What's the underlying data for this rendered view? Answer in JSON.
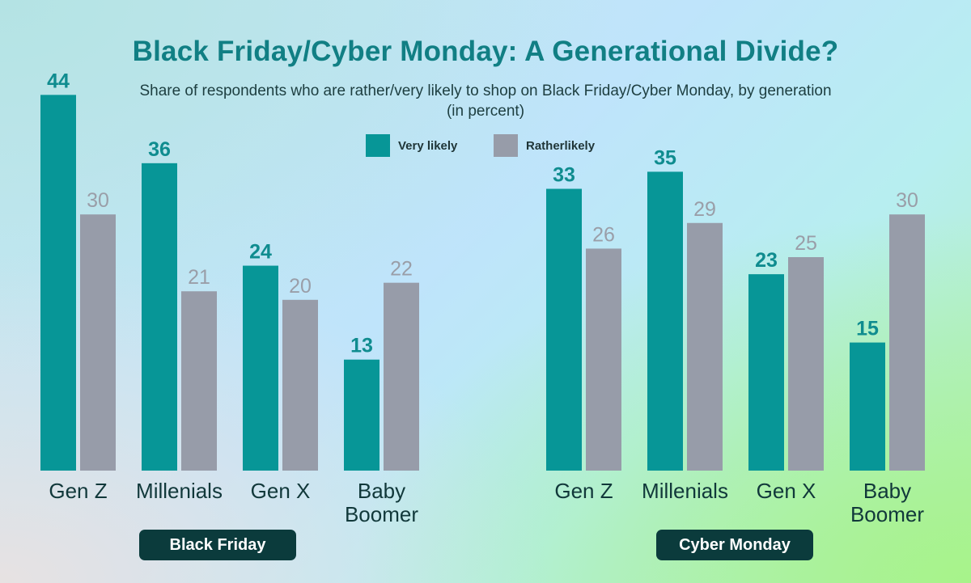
{
  "title": "Black Friday/Cyber Monday: A Generational Divide?",
  "subtitle": "Share of respondents who are rather/very likely to shop on Black Friday/Cyber Monday, by generation (in percent)",
  "colors": {
    "very_likely": "#079697",
    "rather_likely": "#979ca9",
    "very_label": "#0f8c8f",
    "rather_label": "#9a9ea8",
    "category": "#11383a"
  },
  "legend": [
    {
      "label": "Very likely",
      "color": "#079697"
    },
    {
      "label": "Ratherlikely",
      "color": "#979ca9"
    }
  ],
  "chart_data": [
    {
      "type": "bar",
      "title": "Black Friday",
      "categories": [
        "Gen Z",
        "Millenials",
        "Gen X",
        "Baby Boomer"
      ],
      "series": [
        {
          "name": "Very likely",
          "values": [
            44,
            36,
            24,
            13
          ]
        },
        {
          "name": "Ratherlikely",
          "values": [
            30,
            21,
            20,
            22
          ]
        }
      ],
      "ylim": [
        0,
        44
      ]
    },
    {
      "type": "bar",
      "title": "Cyber Monday",
      "categories": [
        "Gen Z",
        "Millenials",
        "Gen X",
        "Baby Boomer"
      ],
      "series": [
        {
          "name": "Very likely",
          "values": [
            33,
            35,
            23,
            15
          ]
        },
        {
          "name": "Ratherlikely",
          "values": [
            26,
            29,
            25,
            30
          ]
        }
      ],
      "ylim": [
        0,
        44
      ]
    }
  ]
}
